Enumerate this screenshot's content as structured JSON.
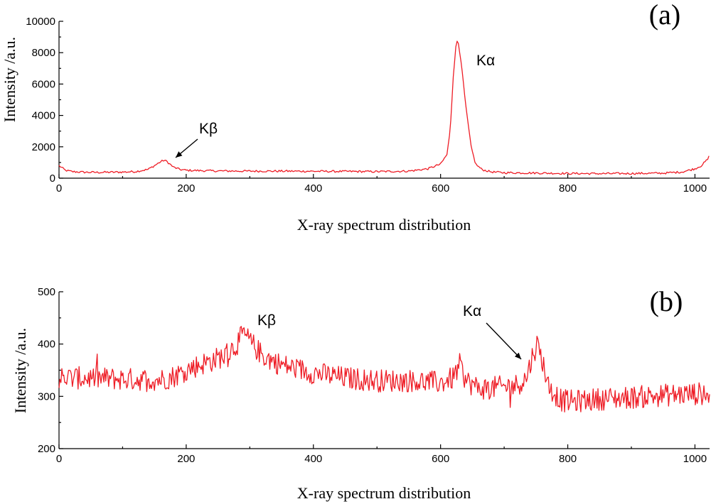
{
  "colors": {
    "series": "#ee1c25",
    "axis": "#000000"
  },
  "chart_data": [
    {
      "type": "line",
      "panel_label": "(a)",
      "xlabel": "X-ray spectrum  distribution",
      "ylabel": "Intensity /a.u.",
      "xlim": [
        0,
        1023
      ],
      "ylim": [
        0,
        10000
      ],
      "xticks": [
        "0",
        "200",
        "400",
        "600",
        "800",
        "1000"
      ],
      "yticks": [
        "0",
        "2000",
        "4000",
        "6000",
        "8000",
        "10000"
      ],
      "grid": false,
      "annotations": [
        {
          "text": "Kβ",
          "target": {
            "x": 180,
            "y": 1150
          }
        },
        {
          "text": "Kα",
          "target": {
            "x": 625,
            "y": 8800
          }
        }
      ],
      "series": [
        {
          "x": [
            0,
            10,
            20,
            40,
            60,
            80,
            100,
            120,
            140,
            150,
            160,
            165,
            170,
            180,
            190,
            200,
            250,
            300,
            350,
            400,
            450,
            500,
            550,
            580,
            600,
            610,
            615,
            620,
            625,
            628,
            632,
            640,
            648,
            655,
            665,
            680,
            700,
            750,
            800,
            850,
            900,
            950,
            980,
            1000,
            1010,
            1020,
            1023
          ],
          "y": [
            800,
            500,
            420,
            380,
            370,
            380,
            390,
            420,
            560,
            800,
            1050,
            1150,
            1050,
            700,
            560,
            500,
            460,
            450,
            450,
            440,
            430,
            420,
            450,
            600,
            900,
            1500,
            3000,
            6500,
            8800,
            8600,
            7500,
            4500,
            2000,
            900,
            550,
            400,
            350,
            330,
            300,
            290,
            300,
            320,
            400,
            600,
            800,
            1200,
            1450
          ]
        }
      ]
    },
    {
      "type": "line",
      "panel_label": "(b)",
      "xlabel": "X-ray spectrum  distribution",
      "ylabel": "Intensity /a.u.",
      "xlim": [
        0,
        1023
      ],
      "ylim": [
        200,
        500
      ],
      "xticks": [
        "0",
        "200",
        "400",
        "600",
        "800",
        "1000"
      ],
      "yticks": [
        "200",
        "300",
        "400",
        "500"
      ],
      "grid": false,
      "annotations": [
        {
          "text": "Kβ",
          "target": {
            "x": 285,
            "y": 440
          }
        },
        {
          "text": "Kα",
          "target": {
            "x": 735,
            "y": 370
          }
        }
      ],
      "series": [
        {
          "x": [
            0,
            50,
            100,
            140,
            160,
            180,
            200,
            220,
            240,
            260,
            280,
            290,
            300,
            320,
            350,
            400,
            450,
            500,
            550,
            600,
            620,
            630,
            640,
            660,
            700,
            720,
            735,
            745,
            752,
            760,
            770,
            790,
            810,
            850,
            900,
            950,
            1000,
            1023
          ],
          "y": [
            335,
            335,
            333,
            332,
            332,
            338,
            350,
            360,
            368,
            378,
            400,
            420,
            405,
            378,
            360,
            345,
            335,
            330,
            330,
            326,
            335,
            360,
            330,
            315,
            318,
            322,
            335,
            380,
            400,
            370,
            318,
            292,
            290,
            295,
            298,
            302,
            305,
            305
          ]
        }
      ]
    }
  ]
}
